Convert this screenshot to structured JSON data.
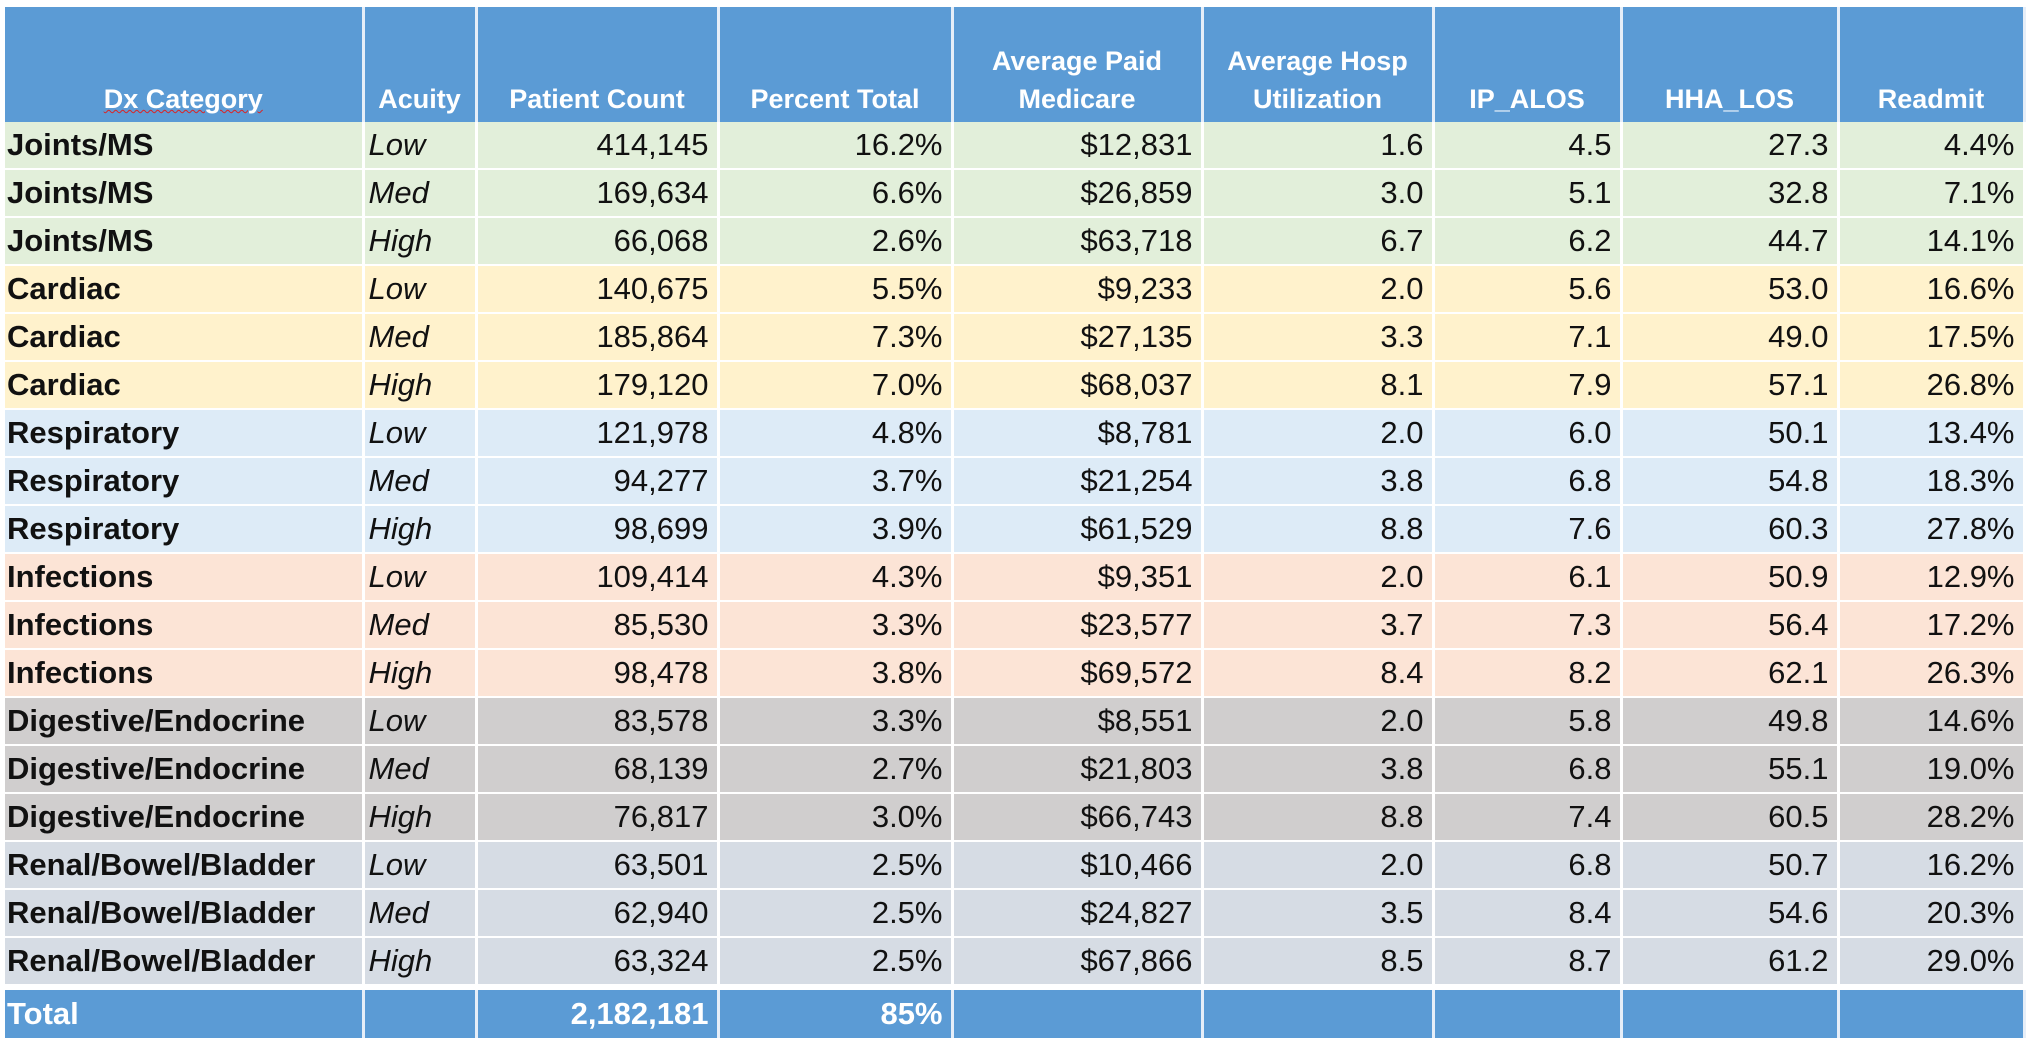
{
  "header": {
    "dx_category": "Dx Category",
    "acuity": "Acuity",
    "patient_count": "Patient Count",
    "percent_total": "Percent Total",
    "avg_paid_medicare": "Average Paid Medicare",
    "avg_hosp_utilization": "Average Hosp Utilization",
    "ip_alos": "IP_ALOS",
    "hha_los": "HHA_LOS",
    "readmit": "Readmit"
  },
  "rows": [
    {
      "dx": "Joints/MS",
      "acuity": "Low",
      "count": "414,145",
      "pct": "16.2%",
      "paid": "$12,831",
      "hosp": "1.6",
      "ip": "4.5",
      "hha": "27.3",
      "readmit": "4.4%"
    },
    {
      "dx": "Joints/MS",
      "acuity": "Med",
      "count": "169,634",
      "pct": "6.6%",
      "paid": "$26,859",
      "hosp": "3.0",
      "ip": "5.1",
      "hha": "32.8",
      "readmit": "7.1%"
    },
    {
      "dx": "Joints/MS",
      "acuity": "High",
      "count": "66,068",
      "pct": "2.6%",
      "paid": "$63,718",
      "hosp": "6.7",
      "ip": "6.2",
      "hha": "44.7",
      "readmit": "14.1%"
    },
    {
      "dx": "Cardiac",
      "acuity": "Low",
      "count": "140,675",
      "pct": "5.5%",
      "paid": "$9,233",
      "hosp": "2.0",
      "ip": "5.6",
      "hha": "53.0",
      "readmit": "16.6%"
    },
    {
      "dx": "Cardiac",
      "acuity": "Med",
      "count": "185,864",
      "pct": "7.3%",
      "paid": "$27,135",
      "hosp": "3.3",
      "ip": "7.1",
      "hha": "49.0",
      "readmit": "17.5%"
    },
    {
      "dx": "Cardiac",
      "acuity": "High",
      "count": "179,120",
      "pct": "7.0%",
      "paid": "$68,037",
      "hosp": "8.1",
      "ip": "7.9",
      "hha": "57.1",
      "readmit": "26.8%"
    },
    {
      "dx": "Respiratory",
      "acuity": "Low",
      "count": "121,978",
      "pct": "4.8%",
      "paid": "$8,781",
      "hosp": "2.0",
      "ip": "6.0",
      "hha": "50.1",
      "readmit": "13.4%"
    },
    {
      "dx": "Respiratory",
      "acuity": "Med",
      "count": "94,277",
      "pct": "3.7%",
      "paid": "$21,254",
      "hosp": "3.8",
      "ip": "6.8",
      "hha": "54.8",
      "readmit": "18.3%"
    },
    {
      "dx": "Respiratory",
      "acuity": "High",
      "count": "98,699",
      "pct": "3.9%",
      "paid": "$61,529",
      "hosp": "8.8",
      "ip": "7.6",
      "hha": "60.3",
      "readmit": "27.8%"
    },
    {
      "dx": "Infections",
      "acuity": "Low",
      "count": "109,414",
      "pct": "4.3%",
      "paid": "$9,351",
      "hosp": "2.0",
      "ip": "6.1",
      "hha": "50.9",
      "readmit": "12.9%"
    },
    {
      "dx": "Infections",
      "acuity": "Med",
      "count": "85,530",
      "pct": "3.3%",
      "paid": "$23,577",
      "hosp": "3.7",
      "ip": "7.3",
      "hha": "56.4",
      "readmit": "17.2%"
    },
    {
      "dx": "Infections",
      "acuity": "High",
      "count": "98,478",
      "pct": "3.8%",
      "paid": "$69,572",
      "hosp": "8.4",
      "ip": "8.2",
      "hha": "62.1",
      "readmit": "26.3%"
    },
    {
      "dx": "Digestive/Endocrine",
      "acuity": "Low",
      "count": "83,578",
      "pct": "3.3%",
      "paid": "$8,551",
      "hosp": "2.0",
      "ip": "5.8",
      "hha": "49.8",
      "readmit": "14.6%"
    },
    {
      "dx": "Digestive/Endocrine",
      "acuity": "Med",
      "count": "68,139",
      "pct": "2.7%",
      "paid": "$21,803",
      "hosp": "3.8",
      "ip": "6.8",
      "hha": "55.1",
      "readmit": "19.0%"
    },
    {
      "dx": "Digestive/Endocrine",
      "acuity": "High",
      "count": "76,817",
      "pct": "3.0%",
      "paid": "$66,743",
      "hosp": "8.8",
      "ip": "7.4",
      "hha": "60.5",
      "readmit": "28.2%"
    },
    {
      "dx": "Renal/Bowel/Bladder",
      "acuity": "Low",
      "count": "63,501",
      "pct": "2.5%",
      "paid": "$10,466",
      "hosp": "2.0",
      "ip": "6.8",
      "hha": "50.7",
      "readmit": "16.2%"
    },
    {
      "dx": "Renal/Bowel/Bladder",
      "acuity": "Med",
      "count": "62,940",
      "pct": "2.5%",
      "paid": "$24,827",
      "hosp": "3.5",
      "ip": "8.4",
      "hha": "54.6",
      "readmit": "20.3%"
    },
    {
      "dx": "Renal/Bowel/Bladder",
      "acuity": "High",
      "count": "63,324",
      "pct": "2.5%",
      "paid": "$67,866",
      "hosp": "8.5",
      "ip": "8.7",
      "hha": "61.2",
      "readmit": "29.0%"
    }
  ],
  "total": {
    "label": "Total",
    "count": "2,182,181",
    "pct": "85%"
  },
  "colors": {
    "header_bg": "#5b9bd5",
    "joints": "#e2efda",
    "cardiac": "#fff2cc",
    "respiratory": "#ddebf7",
    "infections": "#fce4d6",
    "digestive": "#d0cece",
    "renal": "#d6dce4"
  }
}
